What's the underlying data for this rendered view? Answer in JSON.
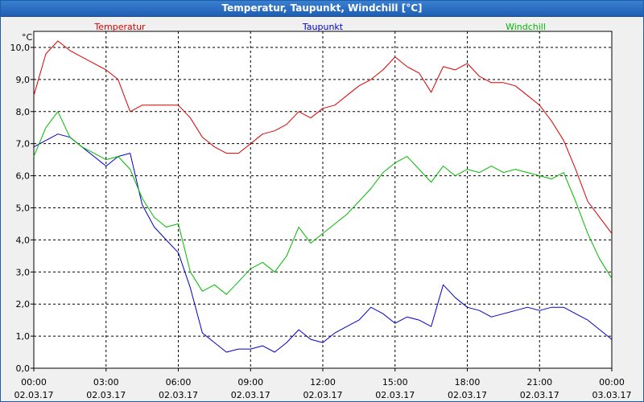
{
  "window": {
    "title": "Temperatur, Taupunkt, Windchill [°C]"
  },
  "colors": {
    "temperature": "#dd0000",
    "dewpoint": "#0000cc",
    "windchill": "#00bb00",
    "grid": "#000000",
    "plot_bg": "#ffffff",
    "frame_bg": "#f0f0f0"
  },
  "chart_data": {
    "type": "line",
    "title": "Temperatur, Taupunkt, Windchill [°C]",
    "ylabel": "°C",
    "xlabel": "",
    "ylim": [
      0,
      10.5
    ],
    "y_ticks": [
      "0,0",
      "1,0",
      "2,0",
      "3,0",
      "4,0",
      "5,0",
      "6,0",
      "7,0",
      "8,0",
      "9,0",
      "10,0"
    ],
    "xlim_hours": [
      0,
      24
    ],
    "x_ticks": [
      {
        "time": "00:00",
        "date": "02.03.17"
      },
      {
        "time": "03:00",
        "date": "02.03.17"
      },
      {
        "time": "06:00",
        "date": "02.03.17"
      },
      {
        "time": "09:00",
        "date": "02.03.17"
      },
      {
        "time": "12:00",
        "date": "02.03.17"
      },
      {
        "time": "15:00",
        "date": "02.03.17"
      },
      {
        "time": "18:00",
        "date": "02.03.17"
      },
      {
        "time": "21:00",
        "date": "02.03.17"
      },
      {
        "time": "00:00",
        "date": "03.03.17"
      }
    ],
    "grid": true,
    "x_hours": [
      0,
      0.5,
      1,
      1.5,
      2,
      2.5,
      3,
      3.5,
      4,
      4.5,
      5,
      5.5,
      6,
      6.5,
      7,
      7.5,
      8,
      8.5,
      9,
      9.5,
      10,
      10.5,
      11,
      11.5,
      12,
      12.5,
      13,
      13.5,
      14,
      14.5,
      15,
      15.5,
      16,
      16.5,
      17,
      17.5,
      18,
      18.5,
      19,
      19.5,
      20,
      20.5,
      21,
      21.5,
      22,
      22.5,
      23,
      23.5,
      24
    ],
    "series": [
      {
        "name": "Temperatur",
        "values": [
          8.5,
          9.8,
          10.2,
          9.9,
          9.7,
          9.5,
          9.3,
          9.0,
          8.0,
          8.2,
          8.2,
          8.2,
          8.2,
          7.8,
          7.2,
          6.9,
          6.7,
          6.7,
          7.0,
          7.3,
          7.4,
          7.6,
          8.0,
          7.8,
          8.1,
          8.2,
          8.5,
          8.8,
          9.0,
          9.3,
          9.7,
          9.4,
          9.2,
          8.6,
          9.4,
          9.3,
          9.5,
          9.1,
          8.9,
          8.9,
          8.8,
          8.5,
          8.2,
          7.7,
          7.1,
          6.2,
          5.2,
          4.7,
          4.2
        ]
      },
      {
        "name": "Taupunkt",
        "values": [
          6.9,
          7.1,
          7.3,
          7.2,
          6.9,
          6.6,
          6.3,
          6.6,
          6.7,
          5.1,
          4.4,
          4.0,
          3.6,
          2.5,
          1.1,
          0.8,
          0.5,
          0.6,
          0.6,
          0.7,
          0.5,
          0.8,
          1.2,
          0.9,
          0.8,
          1.1,
          1.3,
          1.5,
          1.9,
          1.7,
          1.4,
          1.6,
          1.5,
          1.3,
          2.6,
          2.2,
          1.9,
          1.8,
          1.6,
          1.7,
          1.8,
          1.9,
          1.8,
          1.9,
          1.9,
          1.7,
          1.5,
          1.2,
          0.9
        ]
      },
      {
        "name": "Windchill",
        "values": [
          6.6,
          7.5,
          8.0,
          7.2,
          6.9,
          6.7,
          6.5,
          6.6,
          6.2,
          5.3,
          4.7,
          4.4,
          4.5,
          3.0,
          2.4,
          2.6,
          2.3,
          2.7,
          3.1,
          3.3,
          3.0,
          3.5,
          4.4,
          3.9,
          4.2,
          4.5,
          4.8,
          5.2,
          5.6,
          6.1,
          6.4,
          6.6,
          6.2,
          5.8,
          6.3,
          6.0,
          6.2,
          6.1,
          6.3,
          6.1,
          6.2,
          6.1,
          6.0,
          5.9,
          6.1,
          5.2,
          4.2,
          3.4,
          2.8
        ]
      }
    ]
  }
}
